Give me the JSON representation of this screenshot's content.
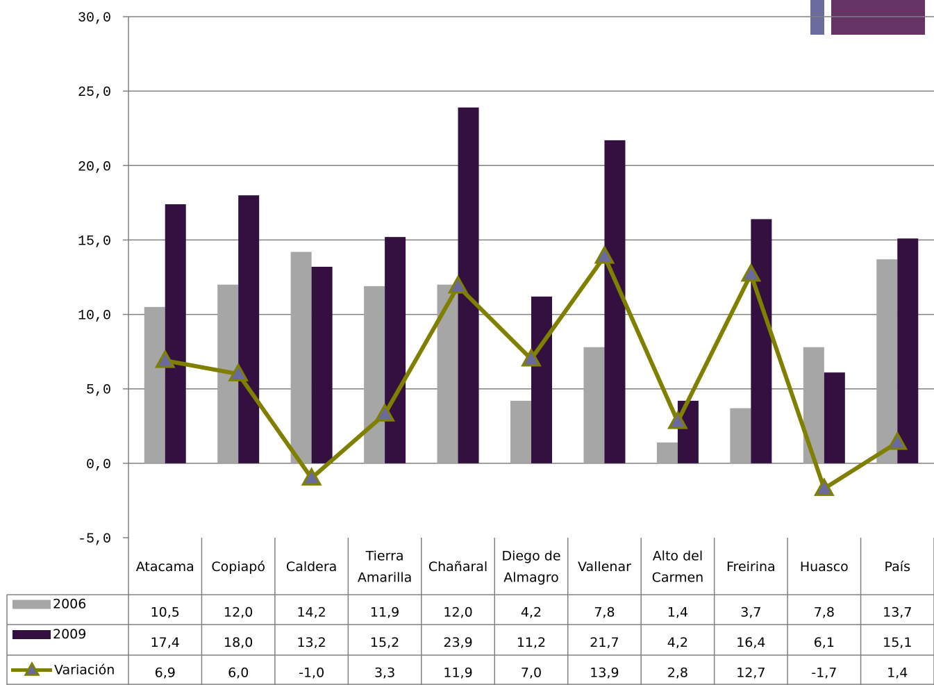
{
  "chart_data": {
    "type": "bar",
    "categories": [
      [
        "Atacama"
      ],
      [
        "Copiapó"
      ],
      [
        "Caldera"
      ],
      [
        "Tierra",
        "Amarilla"
      ],
      [
        "Chañaral"
      ],
      [
        "Diego de",
        "Almagro"
      ],
      [
        "Vallenar"
      ],
      [
        "Alto del",
        "Carmen"
      ],
      [
        "Freirina"
      ],
      [
        "Huasco"
      ],
      [
        "País"
      ]
    ],
    "series": [
      {
        "name": "2006",
        "kind": "bar",
        "color": "#a6a6a6",
        "values": [
          10.5,
          12.0,
          14.2,
          11.9,
          12.0,
          4.2,
          7.8,
          1.4,
          3.7,
          7.8,
          13.7
        ],
        "labels": [
          "10,5",
          "12,0",
          "14,2",
          "11,9",
          "12,0",
          "4,2",
          "7,8",
          "1,4",
          "3,7",
          "7,8",
          "13,7"
        ]
      },
      {
        "name": "2009",
        "kind": "bar",
        "color": "#331040",
        "values": [
          17.4,
          18.0,
          13.2,
          15.2,
          23.9,
          11.2,
          21.7,
          4.2,
          16.4,
          6.1,
          15.1
        ],
        "labels": [
          "17,4",
          "18,0",
          "13,2",
          "15,2",
          "23,9",
          "11,2",
          "21,7",
          "4,2",
          "16,4",
          "6,1",
          "15,1"
        ]
      },
      {
        "name": "Variación",
        "kind": "line",
        "color": "#7f7f00",
        "marker_color": "#6a6a9e",
        "values": [
          6.9,
          6.0,
          -1.0,
          3.3,
          11.9,
          7.0,
          13.9,
          2.8,
          12.7,
          -1.7,
          1.4
        ],
        "labels": [
          "6,9",
          "6,0",
          "-1,0",
          "3,3",
          "11,9",
          "7,0",
          "13,9",
          "2,8",
          "12,7",
          "-1,7",
          "1,4"
        ]
      }
    ],
    "ylim": [
      -5,
      30
    ],
    "yticks": [
      30,
      25,
      20,
      15,
      10,
      5,
      0,
      -5
    ],
    "ytick_labels": [
      "30,0",
      "25,0",
      "20,0",
      "15,0",
      "10,0",
      "5,0",
      "0,0",
      "-5,0"
    ],
    "grid": true,
    "data_table": true,
    "decor_colors": [
      "#6b6b9e",
      "#663366"
    ]
  }
}
